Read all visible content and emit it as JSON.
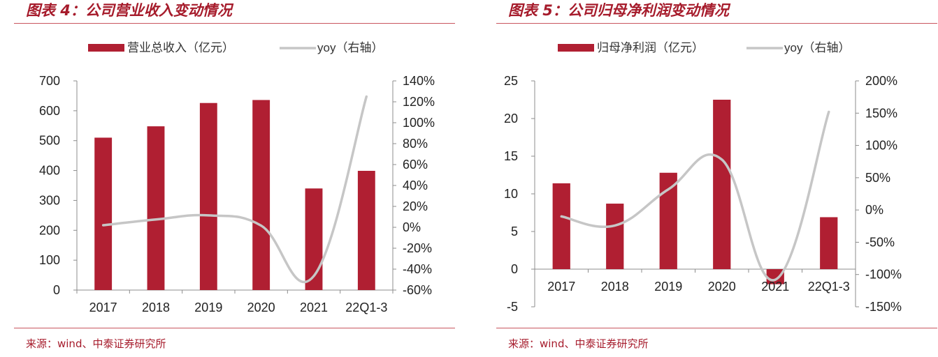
{
  "chart_data": [
    {
      "type": "bar",
      "title": "图表 4：公司营业收入变动情况",
      "categories": [
        "2017",
        "2018",
        "2019",
        "2020",
        "2021",
        "22Q1-3"
      ],
      "series": [
        {
          "name": "营业总收入（亿元）",
          "type": "bar",
          "axis": "left",
          "color": "#b01f32",
          "values": [
            510,
            548,
            626,
            636,
            340,
            399
          ]
        },
        {
          "name": "yoy（右轴）",
          "type": "line",
          "axis": "right",
          "color": "#c6c6c6",
          "values": [
            2,
            7.5,
            11.4,
            1.6,
            -46.5,
            125
          ]
        }
      ],
      "ylim": [
        0,
        700
      ],
      "yticks": [
        0,
        100,
        200,
        300,
        400,
        500,
        600,
        700
      ],
      "ytick_labels": [
        "0",
        "100",
        "200",
        "300",
        "400",
        "500",
        "600",
        "700"
      ],
      "y2lim": [
        -60,
        140
      ],
      "y2ticks": [
        -60,
        -40,
        -20,
        0,
        20,
        40,
        60,
        80,
        100,
        120,
        140
      ],
      "y2tick_labels": [
        "-60%",
        "-40%",
        "-20%",
        "0%",
        "20%",
        "40%",
        "60%",
        "80%",
        "100%",
        "120%",
        "140%"
      ],
      "xlabel": "",
      "ylabel": "",
      "legend_position": "top",
      "source": "来源：wind、中泰证券研究所"
    },
    {
      "type": "bar",
      "title": "图表 5：公司归母净利润变动情况",
      "categories": [
        "2017",
        "2018",
        "2019",
        "2020",
        "2021",
        "22Q1-3"
      ],
      "series": [
        {
          "name": "归母净利润（亿元）",
          "type": "bar",
          "axis": "left",
          "color": "#b01f32",
          "values": [
            11.4,
            8.7,
            12.8,
            22.5,
            -2,
            6.9
          ]
        },
        {
          "name": "yoy（右轴）",
          "type": "line",
          "axis": "right",
          "color": "#c6c6c6",
          "values": [
            -10,
            -24,
            32,
            78,
            -108,
            152
          ]
        }
      ],
      "ylim": [
        -5,
        25
      ],
      "yticks": [
        -5,
        0,
        5,
        10,
        15,
        20,
        25
      ],
      "ytick_labels": [
        "-5",
        "0",
        "5",
        "10",
        "15",
        "20",
        "25"
      ],
      "y2lim": [
        -150,
        200
      ],
      "y2ticks": [
        -150,
        -100,
        -50,
        0,
        50,
        100,
        150,
        200
      ],
      "y2tick_labels": [
        "-150%",
        "-100%",
        "-50%",
        "0%",
        "50%",
        "100%",
        "150%",
        "200%"
      ],
      "xlabel": "",
      "ylabel": "",
      "legend_position": "top",
      "source": "来源：wind、中泰证券研究所"
    }
  ]
}
